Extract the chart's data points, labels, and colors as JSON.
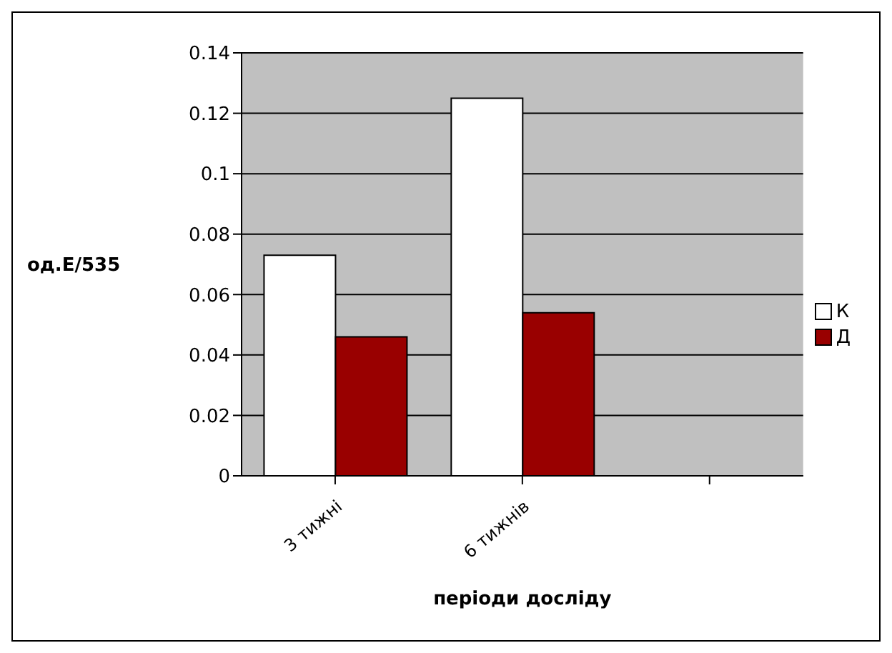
{
  "chart_data": {
    "type": "bar",
    "categories": [
      "3 тижні",
      "6 тижнів",
      null
    ],
    "xlabel": "періоди досліду",
    "ylabel": "од.Е/535",
    "series": [
      {
        "name": "К",
        "color": "#ffffff",
        "values": [
          0.073,
          0.125,
          null
        ]
      },
      {
        "name": "Д",
        "color": "#990000",
        "values": [
          0.046,
          0.054,
          null
        ]
      }
    ],
    "ylim": [
      0,
      0.14
    ],
    "yticks": [
      0,
      0.02,
      0.04,
      0.06,
      0.08,
      0.1,
      0.12,
      0.14
    ],
    "grid": "y",
    "legend": "right"
  }
}
